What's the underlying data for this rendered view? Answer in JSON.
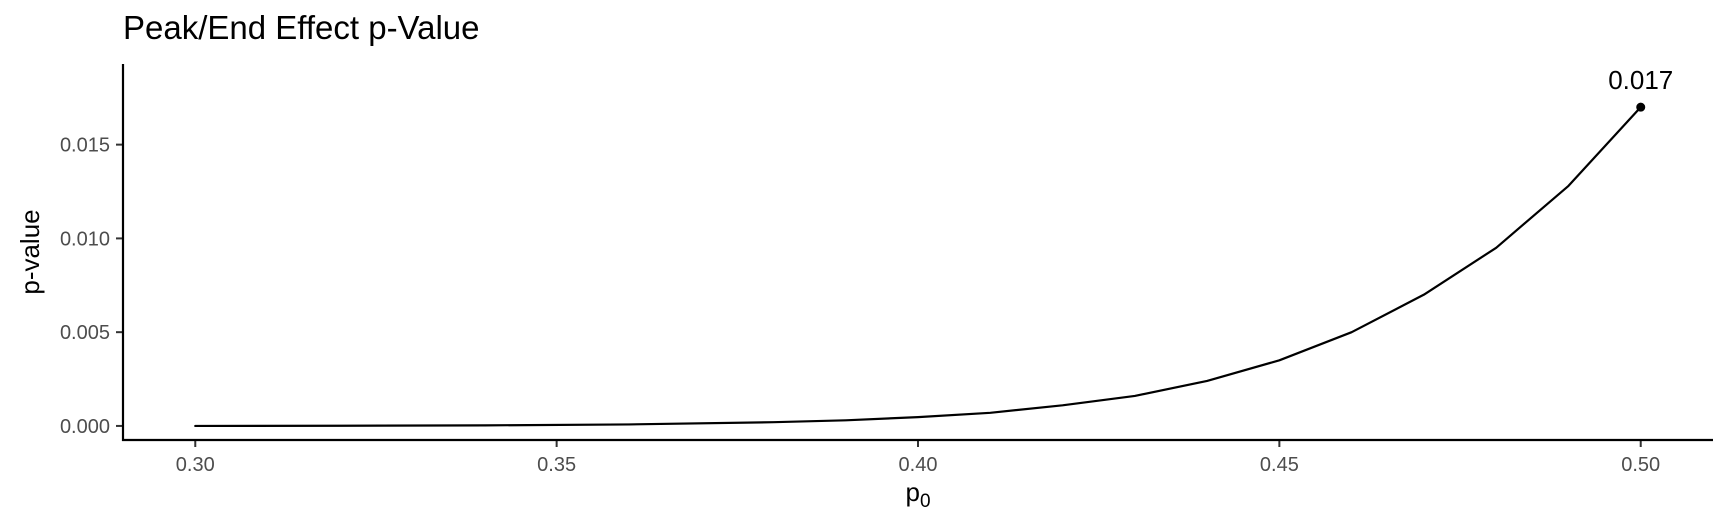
{
  "chart_data": {
    "type": "line",
    "title": "Peak/End Effect p-Value",
    "xlabel": "p",
    "xlabel_subscript": "0",
    "ylabel": "p-value",
    "xlim": [
      0.29,
      0.51
    ],
    "ylim": [
      -0.00075,
      0.0193
    ],
    "x_ticks": [
      {
        "value": 0.3,
        "label": "0.30"
      },
      {
        "value": 0.35,
        "label": "0.35"
      },
      {
        "value": 0.4,
        "label": "0.40"
      },
      {
        "value": 0.45,
        "label": "0.45"
      },
      {
        "value": 0.5,
        "label": "0.50"
      }
    ],
    "y_ticks": [
      {
        "value": 0.0,
        "label": "0.000"
      },
      {
        "value": 0.005,
        "label": "0.005"
      },
      {
        "value": 0.01,
        "label": "0.010"
      },
      {
        "value": 0.015,
        "label": "0.015"
      }
    ],
    "series": [
      {
        "color": "#000000",
        "x": [
          0.3,
          0.32,
          0.34,
          0.36,
          0.38,
          0.39,
          0.4,
          0.41,
          0.42,
          0.43,
          0.44,
          0.45,
          0.46,
          0.47,
          0.48,
          0.49,
          0.5
        ],
        "y": [
          0.0,
          1e-05,
          3e-05,
          8e-05,
          0.0002,
          0.0003,
          0.00047,
          0.0007,
          0.0011,
          0.0016,
          0.0024,
          0.0035,
          0.005,
          0.007,
          0.0095,
          0.0128,
          0.017
        ]
      }
    ],
    "highlight_point": {
      "x": 0.5,
      "y": 0.017,
      "label": "0.017"
    },
    "grid": false,
    "legend": "none"
  }
}
